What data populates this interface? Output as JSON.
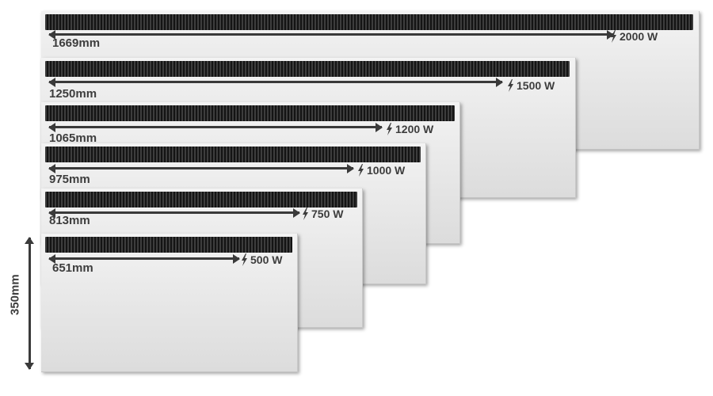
{
  "diagram": {
    "height_label": "350mm",
    "heaters": [
      {
        "width_label": "1669mm",
        "power_label": "2000 W"
      },
      {
        "width_label": "1250mm",
        "power_label": "1500 W"
      },
      {
        "width_label": "1065mm",
        "power_label": "1200 W"
      },
      {
        "width_label": "975mm",
        "power_label": "1000 W"
      },
      {
        "width_label": "813mm",
        "power_label": "750 W"
      },
      {
        "width_label": "651mm",
        "power_label": "500 W"
      }
    ]
  }
}
